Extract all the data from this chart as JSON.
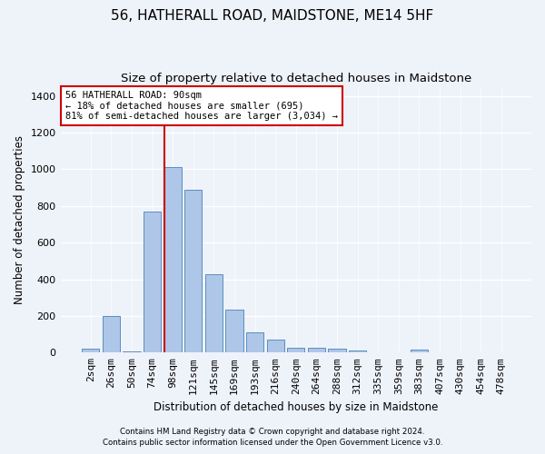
{
  "title": "56, HATHERALL ROAD, MAIDSTONE, ME14 5HF",
  "subtitle": "Size of property relative to detached houses in Maidstone",
  "xlabel": "Distribution of detached houses by size in Maidstone",
  "ylabel": "Number of detached properties",
  "footnote1": "Contains HM Land Registry data © Crown copyright and database right 2024.",
  "footnote2": "Contains public sector information licensed under the Open Government Licence v3.0.",
  "categories": [
    "2sqm",
    "26sqm",
    "50sqm",
    "74sqm",
    "98sqm",
    "121sqm",
    "145sqm",
    "169sqm",
    "193sqm",
    "216sqm",
    "240sqm",
    "264sqm",
    "288sqm",
    "312sqm",
    "335sqm",
    "359sqm",
    "383sqm",
    "407sqm",
    "430sqm",
    "454sqm",
    "478sqm"
  ],
  "values": [
    20,
    200,
    5,
    770,
    1010,
    890,
    425,
    235,
    110,
    70,
    25,
    25,
    20,
    10,
    2,
    1,
    15,
    0,
    0,
    0,
    0
  ],
  "bar_color": "#aec6e8",
  "bar_edge_color": "#5a8fc0",
  "vline_color": "#cc0000",
  "vline_x_index": 4,
  "annotation_text": "56 HATHERALL ROAD: 90sqm\n← 18% of detached houses are smaller (695)\n81% of semi-detached houses are larger (3,034) →",
  "annotation_box_color": "#ffffff",
  "annotation_box_edge": "#cc0000",
  "ylim": [
    0,
    1450
  ],
  "yticks": [
    0,
    200,
    400,
    600,
    800,
    1000,
    1200,
    1400
  ],
  "bg_color": "#eef2f9",
  "plot_bg_color": "#eef2f9",
  "title_fontsize": 11,
  "subtitle_fontsize": 9.5
}
